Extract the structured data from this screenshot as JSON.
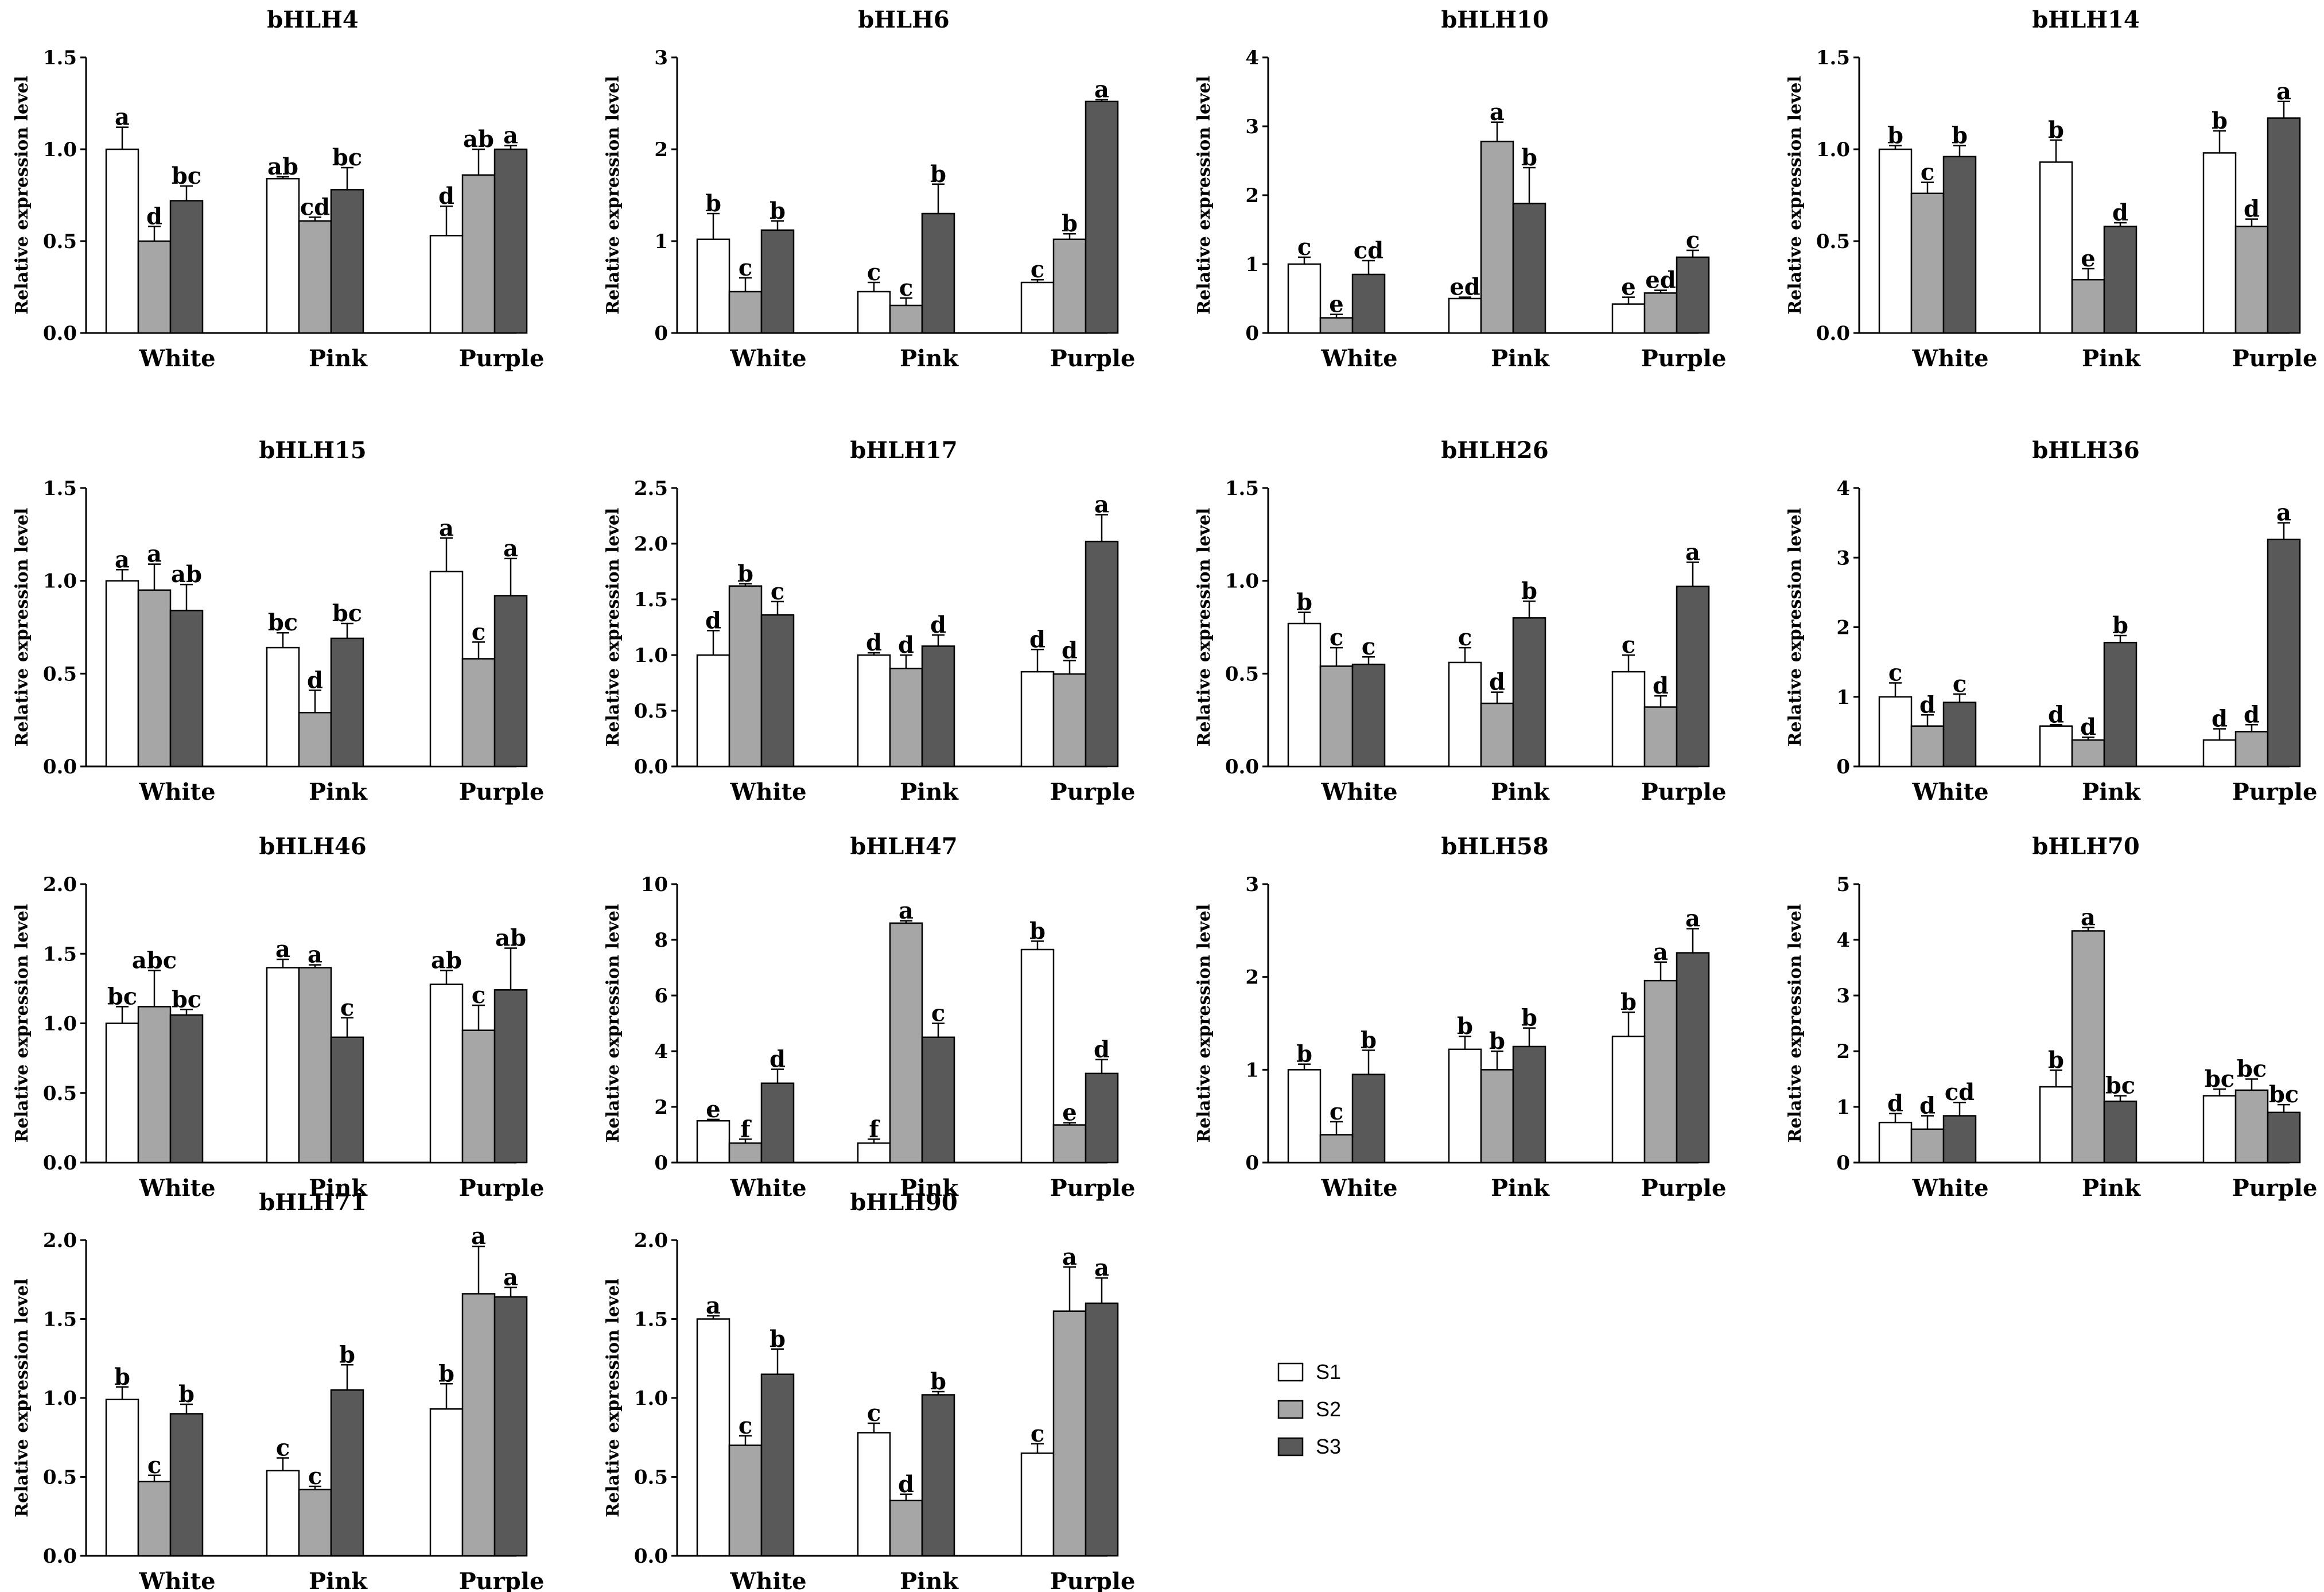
{
  "chart_data": {
    "type": "bar",
    "ylabel": "Relative expression level",
    "categories": [
      "White",
      "Pink",
      "Purple"
    ],
    "legend": {
      "position": "lower-right",
      "entries": [
        {
          "name": "S1",
          "color": "#ffffff"
        },
        {
          "name": "S2",
          "color": "#a6a6a6"
        },
        {
          "name": "S3",
          "color": "#595959"
        }
      ]
    },
    "panels": [
      {
        "title": "bHLH4",
        "ylim": [
          0,
          1.5
        ],
        "ticks": [
          "0.0",
          "0.5",
          "1.0",
          "1.5"
        ],
        "values": [
          [
            1.0,
            0.5,
            0.72
          ],
          [
            0.84,
            0.61,
            0.78
          ],
          [
            0.53,
            0.86,
            1.0
          ]
        ],
        "errors": [
          [
            0.12,
            0.08,
            0.08
          ],
          [
            0.01,
            0.02,
            0.12
          ],
          [
            0.16,
            0.14,
            0.02
          ]
        ],
        "letters": [
          [
            "a",
            "d",
            "bc"
          ],
          [
            "ab",
            "cd",
            "bc"
          ],
          [
            "d",
            "ab",
            "a"
          ]
        ]
      },
      {
        "title": "bHLH6",
        "ylim": [
          0,
          3
        ],
        "ticks": [
          "0",
          "1",
          "2",
          "3"
        ],
        "values": [
          [
            1.02,
            0.45,
            1.12
          ],
          [
            0.45,
            0.3,
            1.3
          ],
          [
            0.55,
            1.02,
            2.52
          ]
        ],
        "errors": [
          [
            0.28,
            0.15,
            0.1
          ],
          [
            0.1,
            0.08,
            0.32
          ],
          [
            0.03,
            0.06,
            0.02
          ]
        ],
        "letters": [
          [
            "b",
            "c",
            "b"
          ],
          [
            "c",
            "c",
            "b"
          ],
          [
            "c",
            "b",
            "a"
          ]
        ]
      },
      {
        "title": "bHLH10",
        "ylim": [
          0,
          4
        ],
        "ticks": [
          "0",
          "1",
          "2",
          "3",
          "4"
        ],
        "values": [
          [
            1.0,
            0.22,
            0.85
          ],
          [
            0.5,
            2.78,
            1.88
          ],
          [
            0.42,
            0.58,
            1.1
          ]
        ],
        "errors": [
          [
            0.1,
            0.05,
            0.2
          ],
          [
            0.02,
            0.28,
            0.52
          ],
          [
            0.1,
            0.04,
            0.1
          ]
        ],
        "letters": [
          [
            "c",
            "e",
            "cd"
          ],
          [
            "ed",
            "a",
            "b"
          ],
          [
            "e",
            "ed",
            "c"
          ]
        ]
      },
      {
        "title": "bHLH14",
        "ylim": [
          0,
          1.5
        ],
        "ticks": [
          "0.0",
          "0.5",
          "1.0",
          "1.5"
        ],
        "values": [
          [
            1.0,
            0.76,
            0.96
          ],
          [
            0.93,
            0.29,
            0.58
          ],
          [
            0.98,
            0.58,
            1.17
          ]
        ],
        "errors": [
          [
            0.02,
            0.06,
            0.06
          ],
          [
            0.12,
            0.06,
            0.02
          ],
          [
            0.12,
            0.04,
            0.09
          ]
        ],
        "letters": [
          [
            "b",
            "c",
            "b"
          ],
          [
            "b",
            "e",
            "d"
          ],
          [
            "b",
            "d",
            "a"
          ]
        ]
      },
      {
        "title": "bHLH15",
        "ylim": [
          0,
          1.5
        ],
        "ticks": [
          "0.0",
          "0.5",
          "1.0",
          "1.5"
        ],
        "values": [
          [
            1.0,
            0.95,
            0.84
          ],
          [
            0.64,
            0.29,
            0.69
          ],
          [
            1.05,
            0.58,
            0.92
          ]
        ],
        "errors": [
          [
            0.06,
            0.14,
            0.14
          ],
          [
            0.08,
            0.12,
            0.08
          ],
          [
            0.18,
            0.09,
            0.2
          ]
        ],
        "letters": [
          [
            "a",
            "a",
            "ab"
          ],
          [
            "bc",
            "d",
            "bc"
          ],
          [
            "a",
            "c",
            "a"
          ]
        ]
      },
      {
        "title": "bHLH17",
        "ylim": [
          0,
          2.5
        ],
        "ticks": [
          "0.0",
          "0.5",
          "1.0",
          "1.5",
          "2.0",
          "2.5"
        ],
        "values": [
          [
            1.0,
            1.62,
            1.36
          ],
          [
            1.0,
            0.88,
            1.08
          ],
          [
            0.85,
            0.83,
            2.02
          ]
        ],
        "errors": [
          [
            0.22,
            0.02,
            0.12
          ],
          [
            0.02,
            0.12,
            0.1
          ],
          [
            0.2,
            0.12,
            0.24
          ]
        ],
        "letters": [
          [
            "d",
            "b",
            "c"
          ],
          [
            "d",
            "d",
            "d"
          ],
          [
            "d",
            "d",
            "a"
          ]
        ]
      },
      {
        "title": "bHLH26",
        "ylim": [
          0,
          1.5
        ],
        "ticks": [
          "0.0",
          "0.5",
          "1.0",
          "1.5"
        ],
        "values": [
          [
            0.77,
            0.54,
            0.55
          ],
          [
            0.56,
            0.34,
            0.8
          ],
          [
            0.51,
            0.32,
            0.97
          ]
        ],
        "errors": [
          [
            0.06,
            0.1,
            0.04
          ],
          [
            0.08,
            0.06,
            0.09
          ],
          [
            0.09,
            0.06,
            0.13
          ]
        ],
        "letters": [
          [
            "b",
            "c",
            "c"
          ],
          [
            "c",
            "d",
            "b"
          ],
          [
            "c",
            "d",
            "a"
          ]
        ]
      },
      {
        "title": "bHLH36",
        "ylim": [
          0,
          4
        ],
        "ticks": [
          "0",
          "1",
          "2",
          "3",
          "4"
        ],
        "values": [
          [
            1.0,
            0.58,
            0.92
          ],
          [
            0.58,
            0.38,
            1.78
          ],
          [
            0.38,
            0.5,
            3.26
          ]
        ],
        "errors": [
          [
            0.2,
            0.16,
            0.12
          ],
          [
            0.02,
            0.04,
            0.1
          ],
          [
            0.16,
            0.1,
            0.24
          ]
        ],
        "letters": [
          [
            "c",
            "d",
            "c"
          ],
          [
            "d",
            "d",
            "b"
          ],
          [
            "d",
            "d",
            "a"
          ]
        ]
      },
      {
        "title": "bHLH46",
        "ylim": [
          0,
          2.0
        ],
        "ticks": [
          "0.0",
          "0.5",
          "1.0",
          "1.5",
          "2.0"
        ],
        "values": [
          [
            1.0,
            1.12,
            1.06
          ],
          [
            1.4,
            1.4,
            0.9
          ],
          [
            1.28,
            0.95,
            1.24
          ]
        ],
        "errors": [
          [
            0.12,
            0.26,
            0.04
          ],
          [
            0.06,
            0.02,
            0.14
          ],
          [
            0.1,
            0.18,
            0.3
          ]
        ],
        "letters": [
          [
            "bc",
            "abc",
            "bc"
          ],
          [
            "a",
            "a",
            "c"
          ],
          [
            "ab",
            "c",
            "ab"
          ]
        ]
      },
      {
        "title": "bHLH47",
        "ylim": [
          0,
          10
        ],
        "ticks": [
          "0",
          "2",
          "4",
          "6",
          "8",
          "10"
        ],
        "values": [
          [
            1.5,
            0.7,
            2.85
          ],
          [
            0.7,
            8.6,
            4.5
          ],
          [
            7.65,
            1.35,
            3.2
          ]
        ],
        "errors": [
          [
            0.05,
            0.14,
            0.5
          ],
          [
            0.14,
            0.08,
            0.5
          ],
          [
            0.3,
            0.08,
            0.5
          ]
        ],
        "letters": [
          [
            "e",
            "f",
            "d"
          ],
          [
            "f",
            "a",
            "c"
          ],
          [
            "b",
            "e",
            "d"
          ]
        ]
      },
      {
        "title": "bHLH58",
        "ylim": [
          0,
          3
        ],
        "ticks": [
          "0",
          "1",
          "2",
          "3"
        ],
        "values": [
          [
            1.0,
            0.3,
            0.95
          ],
          [
            1.22,
            1.0,
            1.25
          ],
          [
            1.36,
            1.96,
            2.26
          ]
        ],
        "errors": [
          [
            0.06,
            0.14,
            0.26
          ],
          [
            0.14,
            0.2,
            0.2
          ],
          [
            0.26,
            0.2,
            0.26
          ]
        ],
        "letters": [
          [
            "b",
            "c",
            "b"
          ],
          [
            "b",
            "b",
            "b"
          ],
          [
            "b",
            "a",
            "a"
          ]
        ]
      },
      {
        "title": "bHLH70",
        "ylim": [
          0,
          5
        ],
        "ticks": [
          "0",
          "1",
          "2",
          "3",
          "4",
          "5"
        ],
        "values": [
          [
            0.72,
            0.6,
            0.84
          ],
          [
            1.36,
            4.16,
            1.1
          ],
          [
            1.2,
            1.3,
            0.9
          ]
        ],
        "errors": [
          [
            0.16,
            0.24,
            0.24
          ],
          [
            0.3,
            0.06,
            0.1
          ],
          [
            0.12,
            0.2,
            0.14
          ]
        ],
        "letters": [
          [
            "d",
            "d",
            "cd"
          ],
          [
            "b",
            "a",
            "bc"
          ],
          [
            "bc",
            "bc",
            "bc"
          ]
        ]
      },
      {
        "title": "bHLH71",
        "ylim": [
          0,
          2.0
        ],
        "ticks": [
          "0.0",
          "0.5",
          "1.0",
          "1.5",
          "2.0"
        ],
        "values": [
          [
            0.99,
            0.47,
            0.9
          ],
          [
            0.54,
            0.42,
            1.05
          ],
          [
            0.93,
            1.66,
            1.64
          ]
        ],
        "errors": [
          [
            0.08,
            0.04,
            0.06
          ],
          [
            0.08,
            0.02,
            0.16
          ],
          [
            0.16,
            0.3,
            0.06
          ]
        ],
        "letters": [
          [
            "b",
            "c",
            "b"
          ],
          [
            "c",
            "c",
            "b"
          ],
          [
            "b",
            "a",
            "a"
          ]
        ]
      },
      {
        "title": "bHLH90",
        "ylim": [
          0,
          2.0
        ],
        "ticks": [
          "0.0",
          "0.5",
          "1.0",
          "1.5",
          "2.0"
        ],
        "values": [
          [
            1.5,
            0.7,
            1.15
          ],
          [
            0.78,
            0.35,
            1.02
          ],
          [
            0.65,
            1.55,
            1.6
          ]
        ],
        "errors": [
          [
            0.02,
            0.06,
            0.16
          ],
          [
            0.06,
            0.04,
            0.02
          ],
          [
            0.06,
            0.28,
            0.16
          ]
        ],
        "letters": [
          [
            "a",
            "c",
            "b"
          ],
          [
            "c",
            "d",
            "b"
          ],
          [
            "c",
            "a",
            "a"
          ]
        ]
      }
    ]
  }
}
